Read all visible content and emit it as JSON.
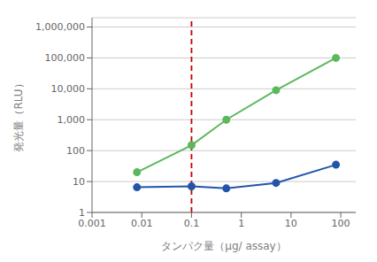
{
  "chart_data": {
    "type": "line",
    "xlabel": "タンパク量（μg/ assay）",
    "ylabel": "発光量（RLU）",
    "x": [
      0.008,
      0.1,
      0.5,
      5,
      80
    ],
    "series": [
      {
        "color": "#5CB85C",
        "values": [
          20,
          150,
          1000,
          9000,
          100000
        ],
        "marker": "circle"
      },
      {
        "color": "#2255AA",
        "values": [
          6.5,
          7,
          6,
          9,
          35
        ],
        "marker": "circle"
      }
    ],
    "log": true,
    "xlim": [
      0.001,
      200
    ],
    "ylim": [
      1,
      2000000
    ],
    "xticks": [
      0.001,
      0.01,
      0.1,
      1,
      10,
      100
    ],
    "yticks": [
      1,
      10,
      100,
      {
        "value": 1000,
        "label": "1,000"
      },
      {
        "value": 10000,
        "label": "10,000"
      },
      {
        "value": 100000,
        "label": "100,000"
      },
      {
        "value": 1000000,
        "label": "1,000,000"
      }
    ],
    "grid": "y",
    "vlines": [
      {
        "x": 0.1,
        "color": "#CC0000",
        "line_style": "dashed"
      }
    ]
  }
}
